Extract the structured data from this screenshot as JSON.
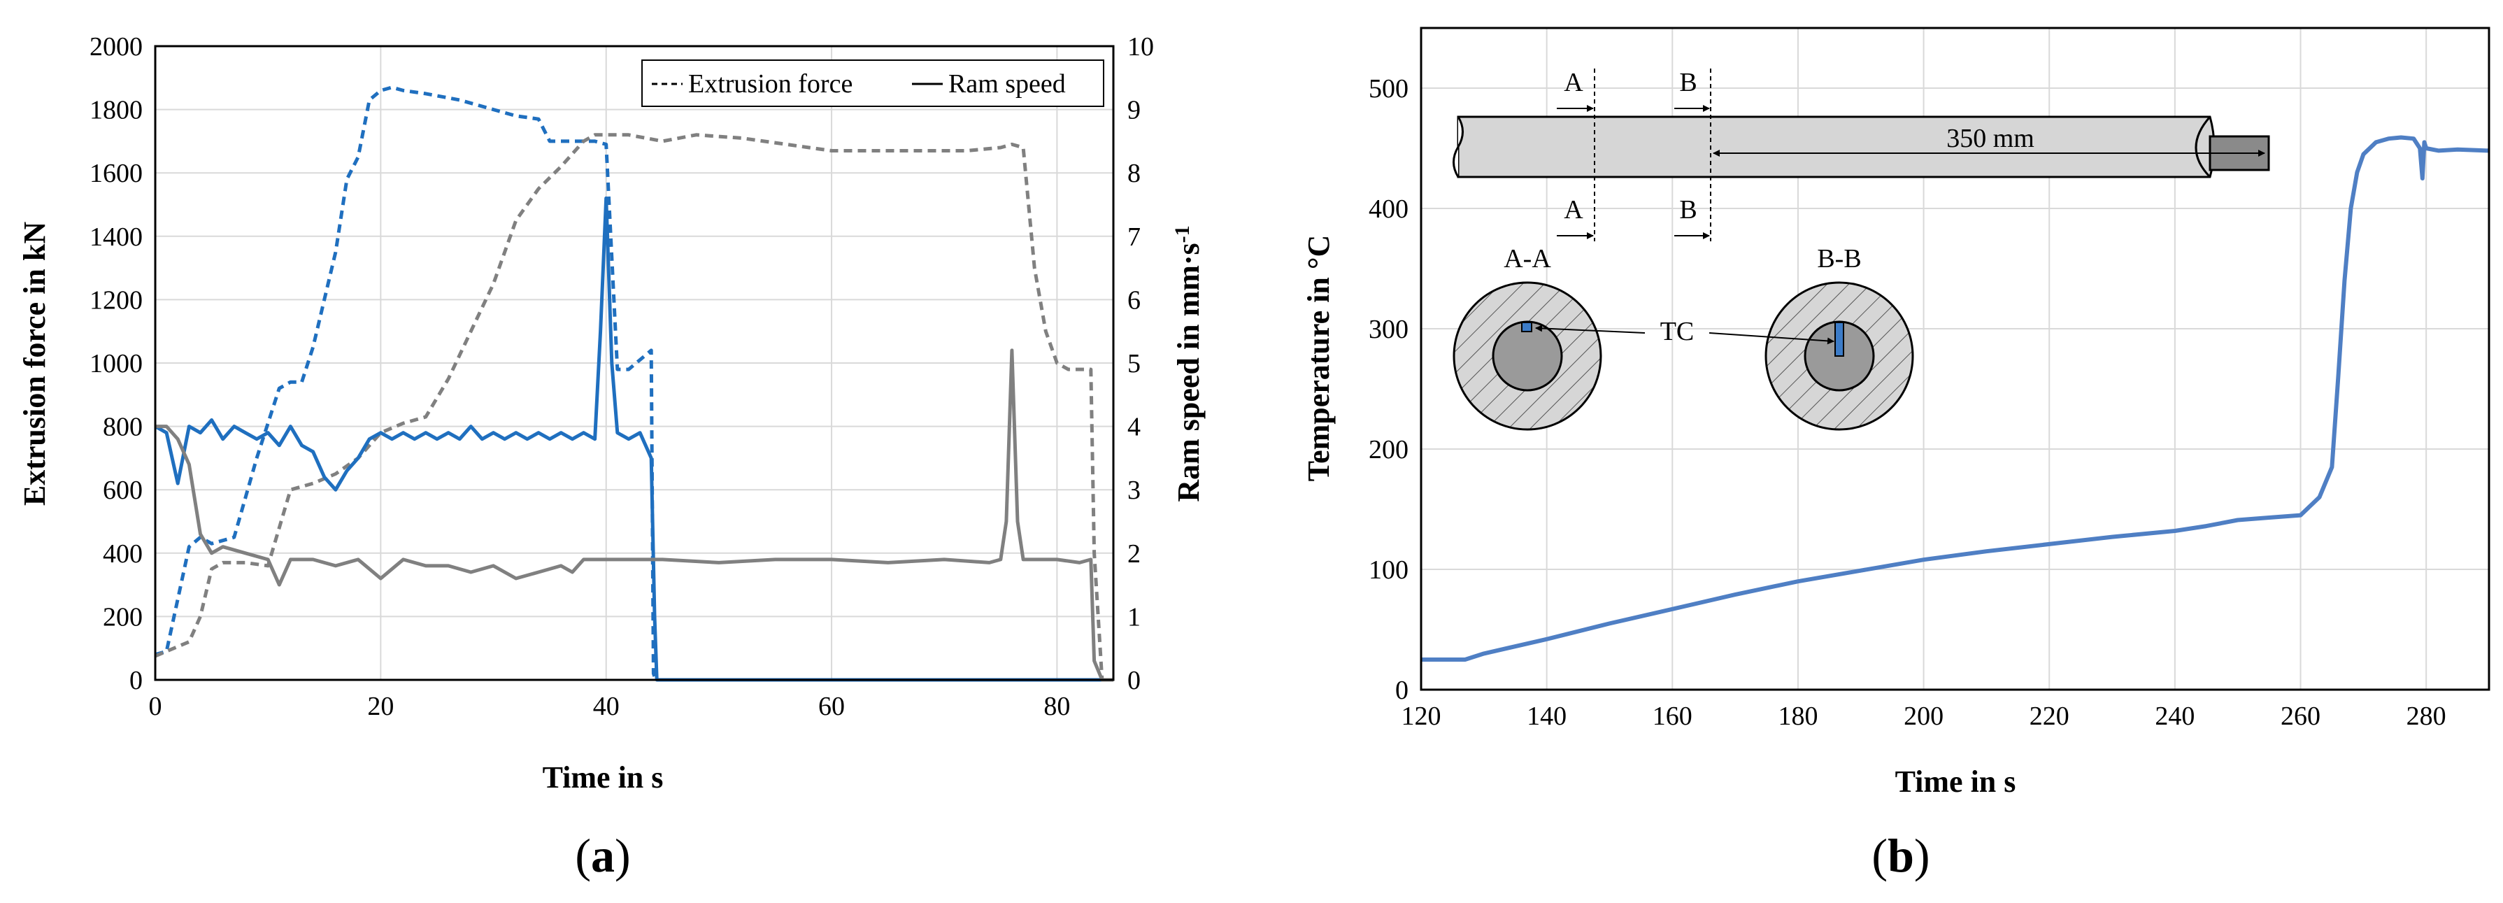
{
  "chart_data": [
    {
      "type": "line",
      "panel": "a",
      "panel_label": {
        "open": "(",
        "letter": "a",
        "close": ")"
      },
      "xlabel": "Time in s",
      "ylabel_left": "Extrusion force in kN",
      "ylabel_right": {
        "main": "Ram speed in mm·s",
        "sup": "-1"
      },
      "xlim": [
        0,
        85
      ],
      "ylim_left": [
        0,
        2000
      ],
      "ylim_right": [
        0,
        10
      ],
      "x_ticks": [
        0,
        20,
        40,
        60,
        80
      ],
      "y_ticks_left": [
        0,
        200,
        400,
        600,
        800,
        1000,
        1200,
        1400,
        1600,
        1800,
        2000
      ],
      "y_ticks_right": [
        0,
        1,
        2,
        3,
        4,
        5,
        6,
        7,
        8,
        9,
        10
      ],
      "legend": [
        {
          "label": "Extrusion force",
          "style": "dashed"
        },
        {
          "label": "Ram speed",
          "style": "solid"
        }
      ],
      "series": [
        {
          "name": "Extrusion force (blue)",
          "axis": "left",
          "style": "dashed",
          "color": "#1f6fbf",
          "x": [
            0,
            1,
            3,
            4,
            5,
            6,
            7,
            9,
            11,
            12,
            13,
            14,
            16,
            17,
            18,
            19,
            20,
            21,
            22,
            24,
            27,
            30,
            32,
            34,
            35,
            37,
            39,
            40,
            41,
            42,
            44,
            44.2,
            44.4
          ],
          "y": [
            80,
            90,
            420,
            450,
            430,
            440,
            450,
            700,
            920,
            940,
            940,
            1050,
            1350,
            1580,
            1650,
            1830,
            1860,
            1870,
            1860,
            1850,
            1830,
            1800,
            1780,
            1770,
            1700,
            1700,
            1700,
            1690,
            980,
            980,
            1040,
            20,
            0
          ]
        },
        {
          "name": "Extrusion force (gray)",
          "axis": "left",
          "style": "dashed",
          "color": "#808080",
          "x": [
            0,
            3,
            4,
            5,
            6,
            8,
            10,
            11,
            12,
            14,
            16,
            18,
            20,
            22,
            24,
            26,
            28,
            30,
            32,
            34,
            36,
            38,
            39,
            40,
            42,
            45,
            48,
            52,
            56,
            60,
            64,
            68,
            72,
            75,
            76,
            77,
            78,
            79,
            80,
            81,
            82,
            83,
            83.3,
            84
          ],
          "y": [
            75,
            120,
            200,
            350,
            370,
            370,
            360,
            480,
            600,
            620,
            650,
            700,
            780,
            810,
            830,
            950,
            1100,
            1250,
            1450,
            1550,
            1620,
            1700,
            1720,
            1720,
            1720,
            1700,
            1720,
            1710,
            1690,
            1670,
            1670,
            1670,
            1670,
            1680,
            1690,
            1680,
            1300,
            1100,
            1000,
            980,
            980,
            980,
            400,
            0
          ]
        },
        {
          "name": "Ram speed (blue)",
          "axis": "right",
          "style": "solid",
          "color": "#1f6fbf",
          "x": [
            0,
            1,
            2,
            3,
            4,
            5,
            6,
            7,
            8,
            9,
            10,
            11,
            12,
            13,
            14,
            15,
            16,
            17,
            18,
            19,
            20,
            21,
            22,
            23,
            24,
            25,
            26,
            27,
            28,
            29,
            30,
            31,
            32,
            33,
            34,
            35,
            36,
            37,
            38,
            39,
            39.5,
            40,
            40.5,
            41,
            42,
            43,
            44,
            44.3,
            44.5,
            45,
            50,
            60,
            70,
            80,
            85
          ],
          "y": [
            4.0,
            3.9,
            3.1,
            4.0,
            3.9,
            4.1,
            3.8,
            4.0,
            3.9,
            3.8,
            3.9,
            3.7,
            4.0,
            3.7,
            3.6,
            3.2,
            3.0,
            3.3,
            3.5,
            3.8,
            3.9,
            3.8,
            3.9,
            3.8,
            3.9,
            3.8,
            3.9,
            3.8,
            4.0,
            3.8,
            3.9,
            3.8,
            3.9,
            3.8,
            3.9,
            3.8,
            3.9,
            3.8,
            3.9,
            3.8,
            5.5,
            7.6,
            5.0,
            3.9,
            3.8,
            3.9,
            3.5,
            1.0,
            0,
            0,
            0,
            0,
            0,
            0,
            0
          ]
        },
        {
          "name": "Ram speed (gray)",
          "axis": "right",
          "style": "solid",
          "color": "#808080",
          "x": [
            0,
            1,
            2,
            3,
            4,
            5,
            6,
            8,
            10,
            11,
            12,
            14,
            16,
            18,
            20,
            22,
            24,
            26,
            28,
            30,
            32,
            34,
            36,
            37,
            38,
            40,
            45,
            50,
            55,
            60,
            65,
            70,
            74,
            75,
            75.5,
            76,
            76.5,
            77,
            78,
            80,
            82,
            83,
            83.3,
            84,
            85
          ],
          "y": [
            4.0,
            4.0,
            3.8,
            3.4,
            2.3,
            2.0,
            2.1,
            2.0,
            1.9,
            1.5,
            1.9,
            1.9,
            1.8,
            1.9,
            1.6,
            1.9,
            1.8,
            1.8,
            1.7,
            1.8,
            1.6,
            1.7,
            1.8,
            1.7,
            1.9,
            1.9,
            1.9,
            1.85,
            1.9,
            1.9,
            1.85,
            1.9,
            1.85,
            1.9,
            2.5,
            5.2,
            2.5,
            1.9,
            1.9,
            1.9,
            1.85,
            1.9,
            0.3,
            0,
            0
          ]
        }
      ]
    },
    {
      "type": "line",
      "panel": "b",
      "panel_label": {
        "open": "(",
        "letter": "b",
        "close": ")"
      },
      "xlabel": "Time in s",
      "ylabel": "Temperature  in °C",
      "xlim": [
        120,
        290
      ],
      "ylim": [
        0,
        550
      ],
      "x_ticks": [
        120,
        140,
        160,
        180,
        200,
        220,
        240,
        260,
        280
      ],
      "y_ticks": [
        0,
        100,
        200,
        300,
        400,
        500
      ],
      "series": [
        {
          "name": "Temperature",
          "color": "#4f7fc4",
          "x": [
            120,
            127,
            130,
            140,
            150,
            160,
            170,
            180,
            190,
            200,
            210,
            220,
            230,
            240,
            245,
            250,
            255,
            260,
            263,
            265,
            266,
            267,
            268,
            269,
            270,
            272,
            274,
            276,
            278,
            279,
            279.4,
            279.7,
            280,
            282,
            285,
            290
          ],
          "y": [
            25,
            25,
            30,
            42,
            55,
            67,
            79,
            90,
            99,
            108,
            115,
            121,
            127,
            132,
            136,
            141,
            143,
            145,
            160,
            185,
            260,
            340,
            400,
            430,
            445,
            455,
            458,
            459,
            458,
            450,
            425,
            455,
            450,
            448,
            449,
            448
          ]
        }
      ],
      "inset": {
        "dimension": "350 mm",
        "section_a": "A",
        "section_b": "B",
        "section_aa": "A-A",
        "section_bb": "B-B",
        "thermocouple": "TC"
      }
    }
  ]
}
